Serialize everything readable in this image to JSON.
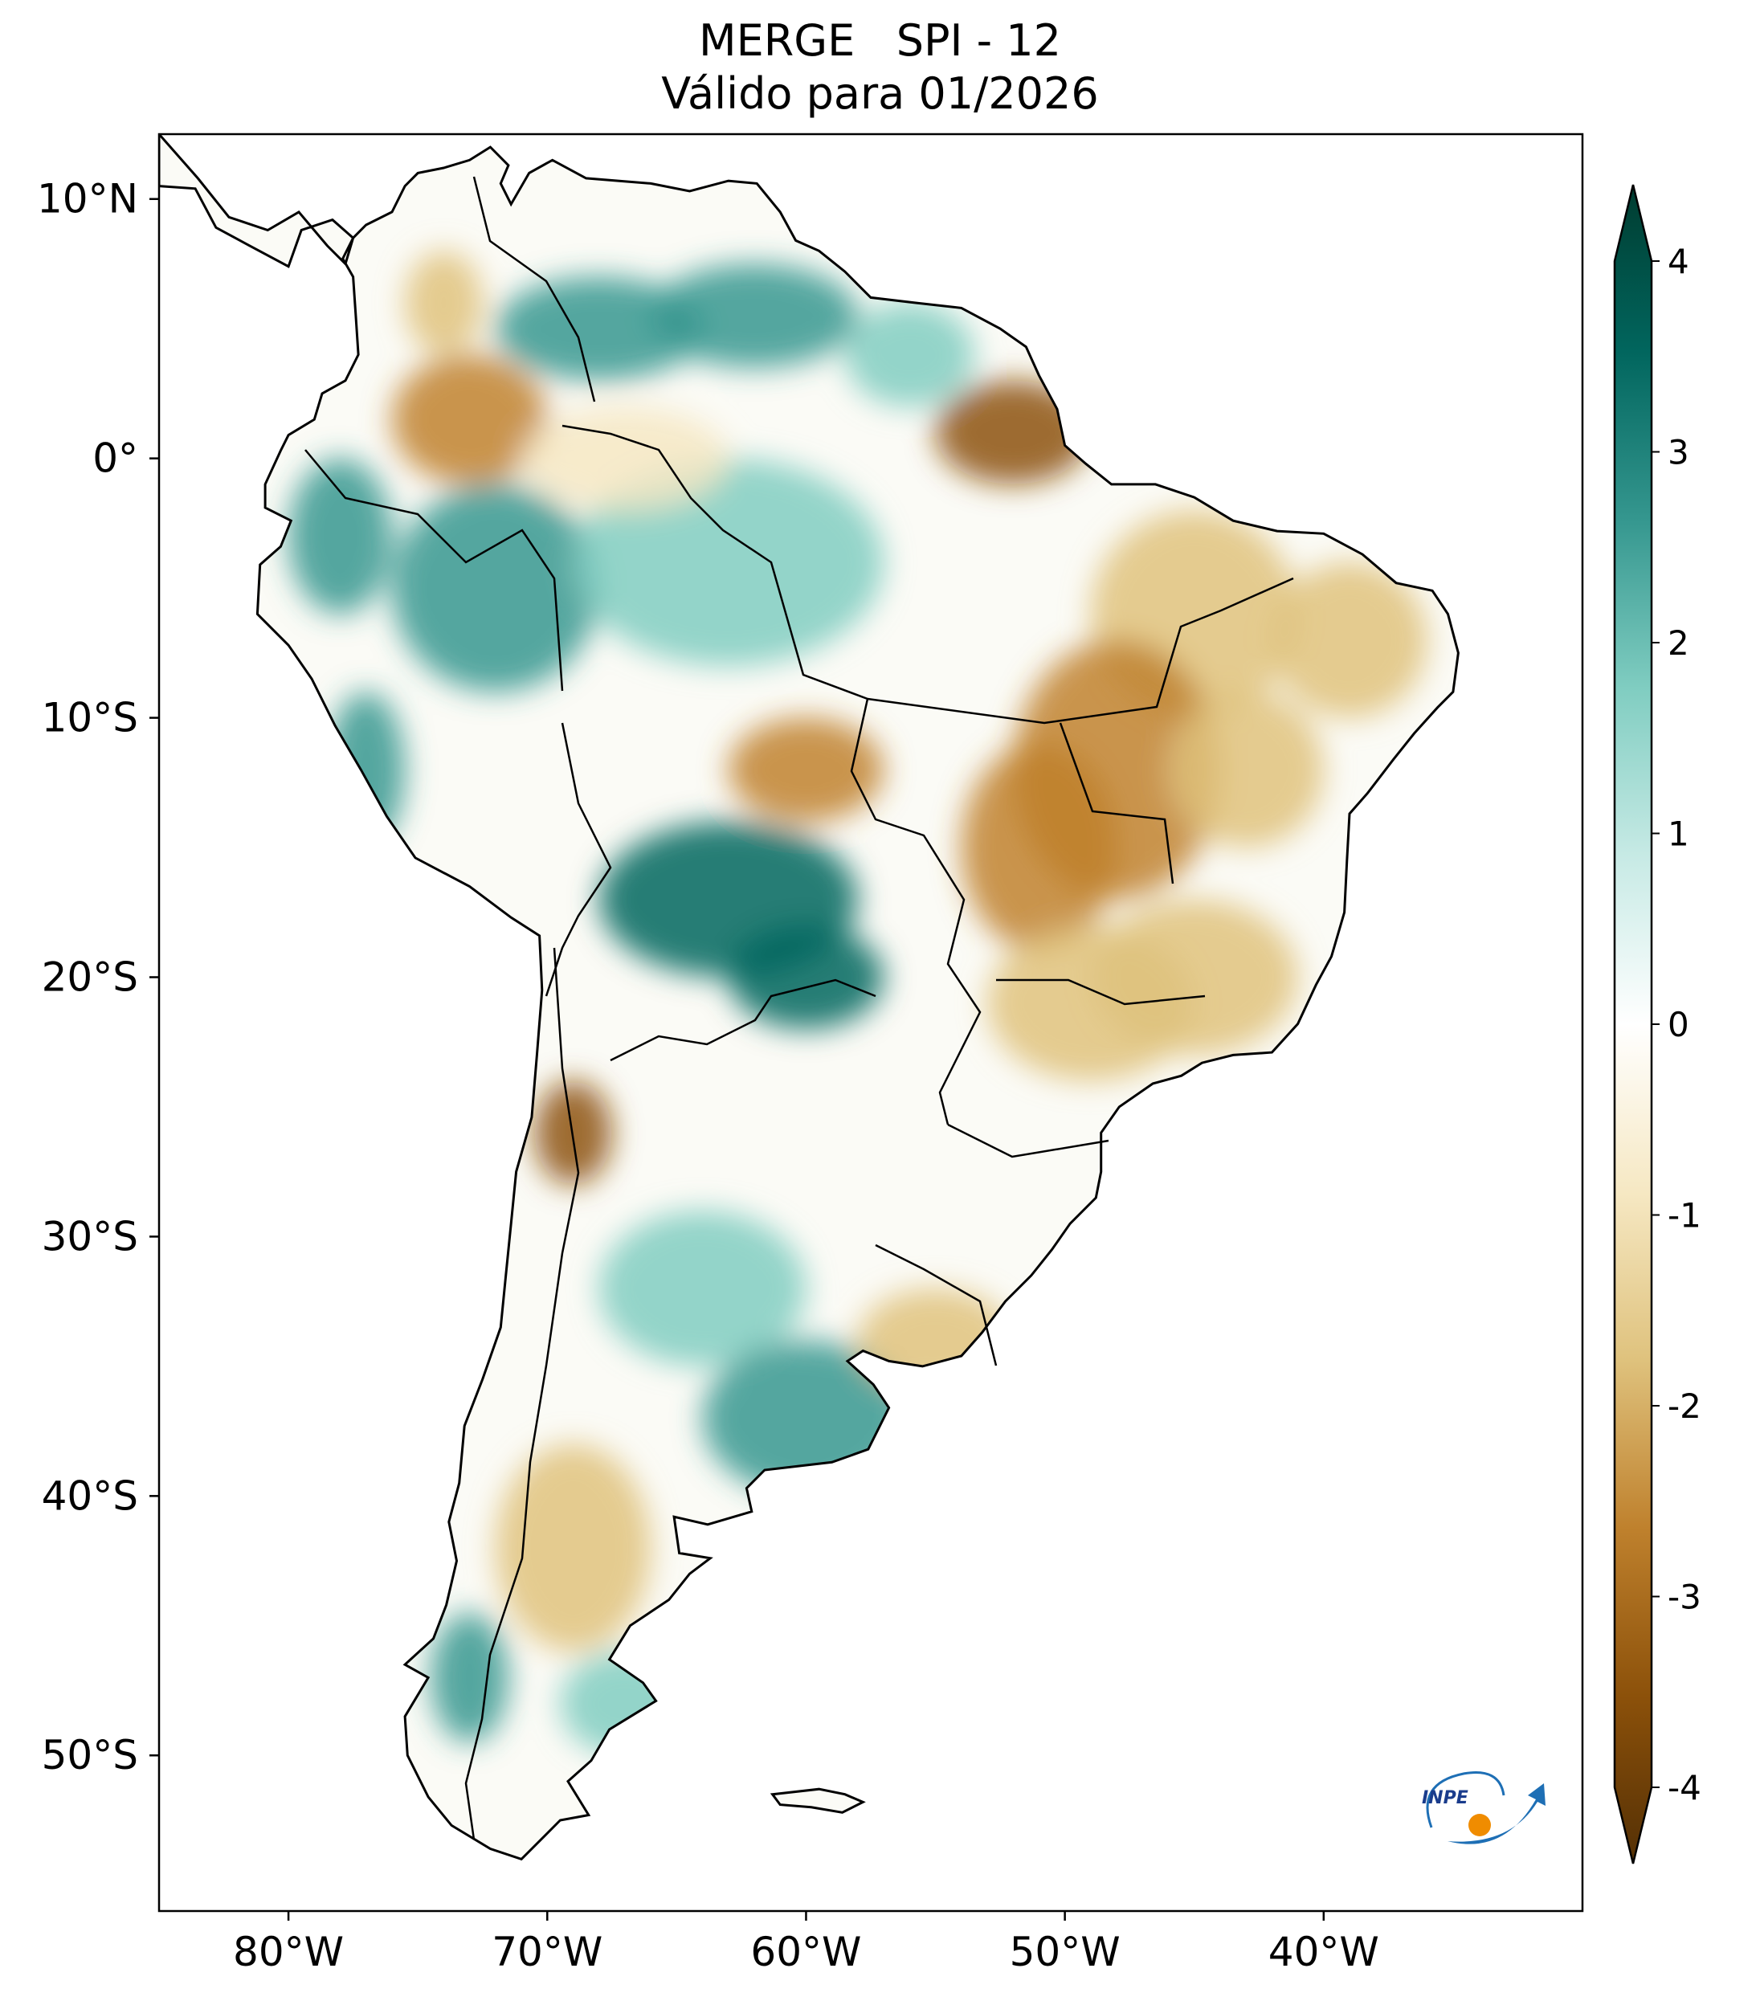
{
  "title": {
    "line1": "MERGE   SPI - 12",
    "line2": "Válido para 01/2026"
  },
  "map": {
    "lat_range": [
      -56,
      12.5
    ],
    "lon_range": [
      -85,
      -30
    ],
    "lat_ticks": [
      {
        "value": 10,
        "label": "10°N"
      },
      {
        "value": 0,
        "label": "0°"
      },
      {
        "value": -10,
        "label": "10°S"
      },
      {
        "value": -20,
        "label": "20°S"
      },
      {
        "value": -30,
        "label": "30°S"
      },
      {
        "value": -40,
        "label": "40°S"
      },
      {
        "value": -50,
        "label": "50°S"
      }
    ],
    "lon_ticks": [
      {
        "value": -80,
        "label": "80°W"
      },
      {
        "value": -70,
        "label": "70°W"
      },
      {
        "value": -60,
        "label": "60°W"
      },
      {
        "value": -50,
        "label": "50°W"
      },
      {
        "value": -40,
        "label": "40°W"
      }
    ],
    "anomaly_regions": [
      {
        "lon": -73,
        "lat": 1.5,
        "rx": 3,
        "ry": 2.5,
        "spi": -2.5
      },
      {
        "lon": -74,
        "lat": 6,
        "rx": 1.5,
        "ry": 2,
        "spi": -2
      },
      {
        "lon": -68,
        "lat": 5,
        "rx": 4,
        "ry": 2,
        "spi": 2
      },
      {
        "lon": -62,
        "lat": 5.5,
        "rx": 4,
        "ry": 2,
        "spi": 2.5
      },
      {
        "lon": -56,
        "lat": 4,
        "rx": 2.5,
        "ry": 2,
        "spi": 1.8
      },
      {
        "lon": -52,
        "lat": 1,
        "rx": 3,
        "ry": 2,
        "spi": -3
      },
      {
        "lon": -78,
        "lat": -3,
        "rx": 2,
        "ry": 3,
        "spi": 2
      },
      {
        "lon": -72,
        "lat": -5,
        "rx": 4,
        "ry": 4,
        "spi": 2
      },
      {
        "lon": -63,
        "lat": -4,
        "rx": 6,
        "ry": 4,
        "spi": 1.5
      },
      {
        "lon": -67,
        "lat": 0,
        "rx": 4,
        "ry": 2,
        "spi": -0.8
      },
      {
        "lon": -45,
        "lat": -6,
        "rx": 4,
        "ry": 4,
        "spi": -2
      },
      {
        "lon": -39,
        "lat": -7,
        "rx": 3,
        "ry": 3,
        "spi": -1.8
      },
      {
        "lon": -48,
        "lat": -12,
        "rx": 4,
        "ry": 5,
        "spi": -2.5
      },
      {
        "lon": -43,
        "lat": -12,
        "rx": 3,
        "ry": 3,
        "spi": -1.5
      },
      {
        "lon": -51,
        "lat": -15,
        "rx": 3,
        "ry": 4,
        "spi": -2.5
      },
      {
        "lon": -60,
        "lat": -12,
        "rx": 3,
        "ry": 2,
        "spi": -2.5
      },
      {
        "lon": -45,
        "lat": -20,
        "rx": 4,
        "ry": 3,
        "spi": -1.5
      },
      {
        "lon": -49,
        "lat": -21,
        "rx": 4,
        "ry": 3,
        "spi": -2
      },
      {
        "lon": -63,
        "lat": -17,
        "rx": 5,
        "ry": 3,
        "spi": 3
      },
      {
        "lon": -60,
        "lat": -20,
        "rx": 3,
        "ry": 2,
        "spi": 3
      },
      {
        "lon": -77,
        "lat": -12,
        "rx": 1.5,
        "ry": 3,
        "spi": 2
      },
      {
        "lon": -69,
        "lat": -26,
        "rx": 1.5,
        "ry": 2,
        "spi": -3
      },
      {
        "lon": -64,
        "lat": -32,
        "rx": 4,
        "ry": 3,
        "spi": 1.8
      },
      {
        "lon": -60,
        "lat": -37,
        "rx": 4,
        "ry": 3,
        "spi": 2.5
      },
      {
        "lon": -55,
        "lat": -34,
        "rx": 3,
        "ry": 2,
        "spi": -2
      },
      {
        "lon": -69,
        "lat": -42,
        "rx": 3,
        "ry": 4,
        "spi": -1.5
      },
      {
        "lon": -67,
        "lat": -48,
        "rx": 2.5,
        "ry": 2,
        "spi": 1.5
      },
      {
        "lon": -73,
        "lat": -47,
        "rx": 1.5,
        "ry": 2.5,
        "spi": 2
      }
    ]
  },
  "colorbar": {
    "min": -4,
    "max": 4,
    "ticks": [
      4,
      3,
      2,
      1,
      0,
      -1,
      -2,
      -3,
      -4
    ],
    "tick_labels": [
      "4",
      "3",
      "2",
      "1",
      "0",
      "-1",
      "-2",
      "-3",
      "-4"
    ],
    "colors": [
      "#543005",
      "#8c510a",
      "#bf812d",
      "#dfc27d",
      "#f6e8c3",
      "#ffffff",
      "#c7eae5",
      "#80cdc1",
      "#35978f",
      "#01665e",
      "#003c30"
    ]
  },
  "logo": {
    "text": "INPE",
    "accent": "#f08c00",
    "brand": "#1e6fb5"
  }
}
